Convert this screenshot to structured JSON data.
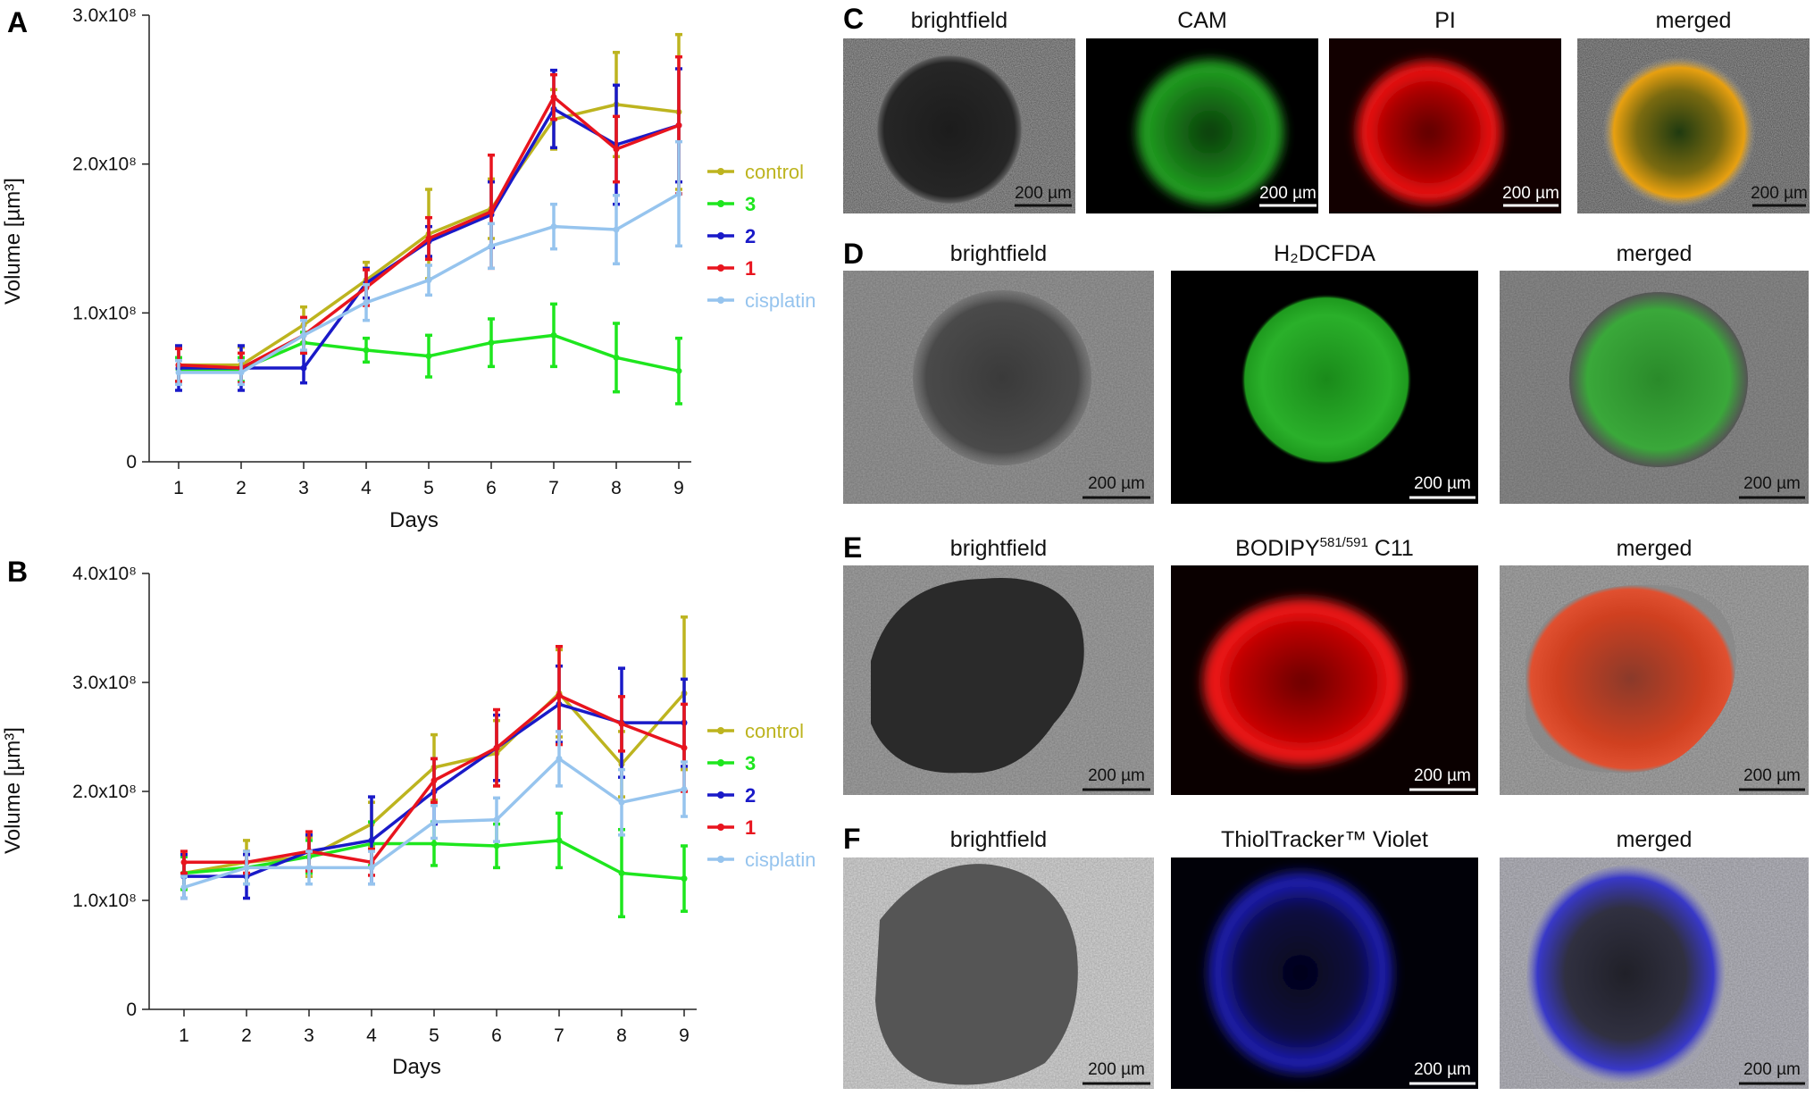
{
  "panels": {
    "A": "A",
    "B": "B",
    "C": "C",
    "D": "D",
    "E": "E",
    "F": "F"
  },
  "chart_data": [
    {
      "id": "A",
      "type": "line",
      "xlabel": "Days",
      "ylabel": "Volume [µm³]",
      "ylim": [
        0,
        300000000
      ],
      "yticks": [
        {
          "value": 0,
          "label": "0"
        },
        {
          "value": 100000000,
          "label": "1.0x10⁸"
        },
        {
          "value": 200000000,
          "label": "2.0x10⁸"
        },
        {
          "value": 300000000,
          "label": "3.0x10⁸"
        }
      ],
      "x": [
        1,
        2,
        3,
        4,
        5,
        6,
        7,
        8,
        9
      ],
      "grid": false,
      "legend_position": "right",
      "series": [
        {
          "name": "control",
          "color": "#bdb41f",
          "bold": false,
          "values": [
            65000000,
            65000000,
            92000000,
            122000000,
            153000000,
            170000000,
            230000000,
            240000000,
            235000000
          ],
          "errors": [
            12000000,
            12000000,
            12000000,
            12000000,
            30000000,
            20000000,
            20000000,
            35000000,
            52000000
          ]
        },
        {
          "name": "3",
          "color": "#1ee61e",
          "bold": true,
          "values": [
            62000000,
            62000000,
            80000000,
            75000000,
            71000000,
            80000000,
            85000000,
            70000000,
            61000000
          ],
          "errors": [
            8000000,
            8000000,
            7000000,
            8000000,
            14000000,
            16000000,
            21000000,
            23000000,
            22000000
          ]
        },
        {
          "name": "2",
          "color": "#1a1ac8",
          "bold": true,
          "values": [
            63000000,
            63000000,
            63000000,
            120000000,
            148000000,
            166000000,
            237000000,
            213000000,
            226000000
          ],
          "errors": [
            15000000,
            15000000,
            10000000,
            10000000,
            10000000,
            22000000,
            26000000,
            40000000,
            38000000
          ]
        },
        {
          "name": "1",
          "color": "#e8141e",
          "bold": true,
          "values": [
            65000000,
            63000000,
            85000000,
            117000000,
            150000000,
            168000000,
            245000000,
            210000000,
            226000000
          ],
          "errors": [
            11000000,
            10000000,
            12000000,
            12000000,
            14000000,
            38000000,
            15000000,
            22000000,
            46000000
          ]
        },
        {
          "name": "cisplatin",
          "color": "#96c4ee",
          "bold": false,
          "values": [
            60000000,
            60000000,
            85000000,
            107000000,
            122000000,
            145000000,
            158000000,
            156000000,
            180000000
          ],
          "errors": [
            8000000,
            8000000,
            10000000,
            12000000,
            10000000,
            15000000,
            15000000,
            23000000,
            35000000
          ]
        }
      ]
    },
    {
      "id": "B",
      "type": "line",
      "xlabel": "Days",
      "ylabel": "Volume [µm³]",
      "ylim": [
        0,
        400000000
      ],
      "yticks": [
        {
          "value": 0,
          "label": "0"
        },
        {
          "value": 100000000,
          "label": "1.0x10⁸"
        },
        {
          "value": 200000000,
          "label": "2.0x10⁸"
        },
        {
          "value": 300000000,
          "label": "3.0x10⁸"
        },
        {
          "value": 400000000,
          "label": "4.0x10⁸"
        }
      ],
      "x": [
        1,
        2,
        3,
        4,
        5,
        6,
        7,
        8,
        9
      ],
      "grid": false,
      "legend_position": "right",
      "series": [
        {
          "name": "control",
          "color": "#bdb41f",
          "bold": false,
          "values": [
            125000000,
            135000000,
            140000000,
            170000000,
            222000000,
            235000000,
            290000000,
            225000000,
            290000000
          ],
          "errors": [
            15000000,
            20000000,
            18000000,
            20000000,
            30000000,
            30000000,
            40000000,
            30000000,
            70000000
          ]
        },
        {
          "name": "3",
          "color": "#1ee61e",
          "bold": true,
          "values": [
            125000000,
            130000000,
            140000000,
            152000000,
            152000000,
            150000000,
            155000000,
            125000000,
            120000000
          ],
          "errors": [
            15000000,
            15000000,
            15000000,
            20000000,
            20000000,
            20000000,
            25000000,
            40000000,
            30000000
          ]
        },
        {
          "name": "2",
          "color": "#1a1ac8",
          "bold": true,
          "values": [
            122000000,
            122000000,
            145000000,
            155000000,
            200000000,
            240000000,
            280000000,
            263000000,
            263000000
          ],
          "errors": [
            20000000,
            20000000,
            15000000,
            40000000,
            30000000,
            30000000,
            35000000,
            50000000,
            40000000
          ]
        },
        {
          "name": "1",
          "color": "#e8141e",
          "bold": true,
          "values": [
            135000000,
            135000000,
            145000000,
            135000000,
            210000000,
            240000000,
            288000000,
            262000000,
            240000000
          ],
          "errors": [
            10000000,
            10000000,
            18000000,
            12000000,
            20000000,
            35000000,
            45000000,
            25000000,
            40000000
          ]
        },
        {
          "name": "cisplatin",
          "color": "#96c4ee",
          "bold": false,
          "values": [
            112000000,
            130000000,
            130000000,
            130000000,
            172000000,
            174000000,
            230000000,
            190000000,
            202000000
          ],
          "errors": [
            10000000,
            15000000,
            15000000,
            15000000,
            15000000,
            20000000,
            25000000,
            30000000,
            25000000
          ]
        }
      ]
    }
  ],
  "image_rows": [
    {
      "id": "C",
      "titles": [
        "brightfield",
        "CAM",
        "PI",
        "merged"
      ],
      "scale_bar": "200 µm"
    },
    {
      "id": "D",
      "titles": [
        "brightfield",
        "H₂DCFDA",
        "merged"
      ],
      "scale_bar": "200 µm"
    },
    {
      "id": "E",
      "titles": [
        "brightfield",
        "BODIPY",
        "merged"
      ],
      "title_sup": "581/591",
      "title_suffix": " C11",
      "scale_bar": "200 µm"
    },
    {
      "id": "F",
      "titles": [
        "brightfield",
        "ThiolTracker™ Violet",
        "merged"
      ],
      "scale_bar": "200 µm"
    }
  ]
}
